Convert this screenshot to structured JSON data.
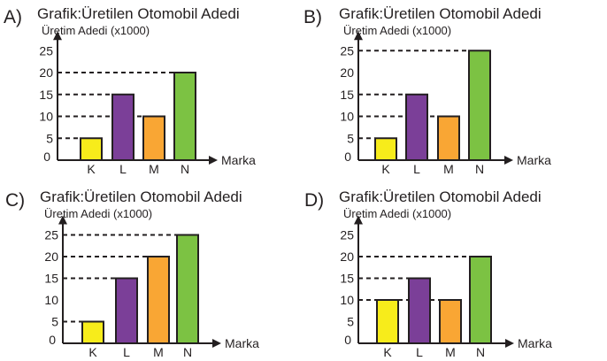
{
  "colors": {
    "K": "#f7ec1b",
    "L": "#7b3f98",
    "M": "#f9a634",
    "N": "#7cc243",
    "axis": "#231f20"
  },
  "chart_data": [
    {
      "panel": "A)",
      "type": "bar",
      "title": "Grafik:Üretilen Otomobil Adedi",
      "ylabel": "Üretim Adedi (x1000)",
      "xlabel": "Marka",
      "categories": [
        "K",
        "L",
        "M",
        "N"
      ],
      "values": [
        5,
        15,
        10,
        20
      ],
      "yticks": [
        0,
        5,
        10,
        15,
        20,
        25
      ],
      "ylim": [
        0,
        25
      ],
      "grid": false
    },
    {
      "panel": "B)",
      "type": "bar",
      "title": "Grafik:Üretilen Otomobil Adedi",
      "ylabel": "Üretim Adedi (x1000)",
      "xlabel": "Marka",
      "categories": [
        "K",
        "L",
        "M",
        "N"
      ],
      "values": [
        5,
        15,
        10,
        25
      ],
      "yticks": [
        0,
        5,
        10,
        15,
        20,
        25
      ],
      "ylim": [
        0,
        25
      ],
      "grid": false
    },
    {
      "panel": "C)",
      "type": "bar",
      "title": "Grafik:Üretilen Otomobil Adedi",
      "ylabel": "Üretim Adedi (x1000)",
      "xlabel": "Marka",
      "categories": [
        "K",
        "L",
        "M",
        "N"
      ],
      "values": [
        5,
        15,
        20,
        25
      ],
      "yticks": [
        0,
        5,
        10,
        15,
        20,
        25
      ],
      "ylim": [
        0,
        25
      ],
      "grid": false
    },
    {
      "panel": "D)",
      "type": "bar",
      "title": "Grafik:Üretilen Otomobil Adedi",
      "ylabel": "Üretim Adedi (x1000)",
      "xlabel": "Marka",
      "categories": [
        "K",
        "L",
        "M",
        "N"
      ],
      "values": [
        10,
        15,
        10,
        20
      ],
      "yticks": [
        0,
        5,
        10,
        15,
        20,
        25
      ],
      "ylim": [
        0,
        25
      ],
      "grid": false
    }
  ]
}
